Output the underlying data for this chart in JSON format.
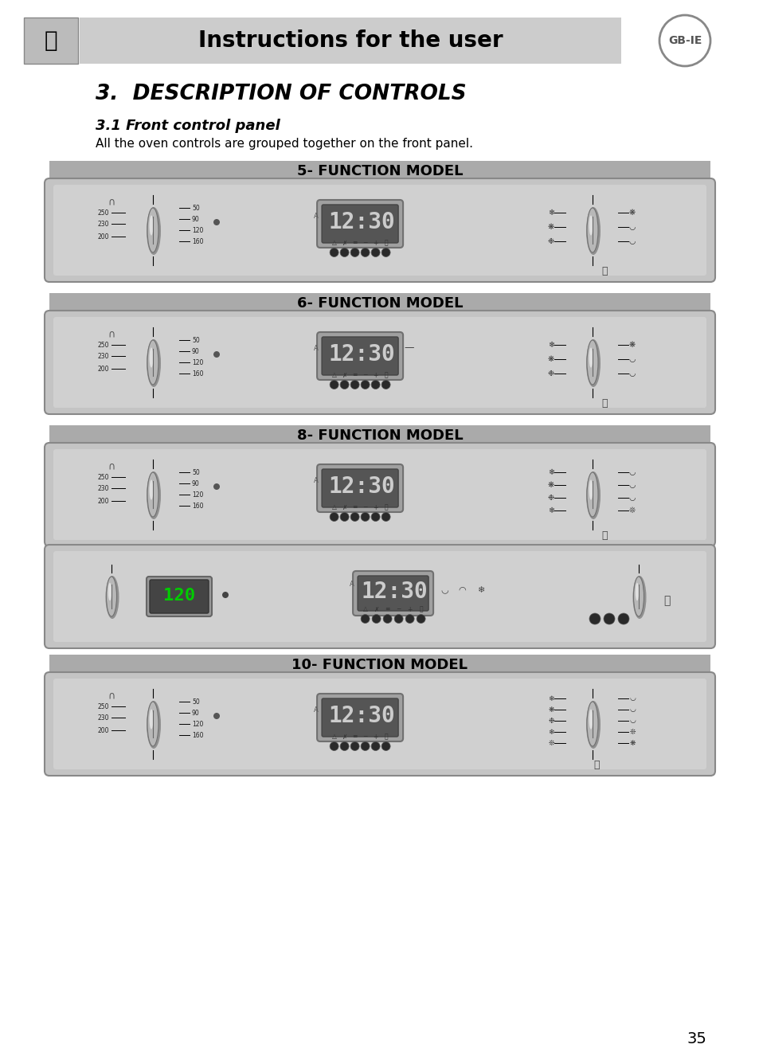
{
  "page_bg": "#ffffff",
  "header_bg": "#c8c8c8",
  "header_text": "Instructions for the user",
  "header_text_color": "#000000",
  "gbIE_text": "GB-IE",
  "section_title": "3.  DESCRIPTION OF CONTROLS",
  "subsection_title": "3.1 Front control panel",
  "subsection_body": "All the oven controls are grouped together on the front panel.",
  "panel_label_bg": "#aaaaaa",
  "panel_label_text_color": "#000000",
  "models": [
    "5- FUNCTION MODEL",
    "6- FUNCTION MODEL",
    "8- FUNCTION MODEL",
    "10- FUNCTION MODEL"
  ],
  "page_number": "35",
  "display_text": "12:30",
  "panel_border": "#888888",
  "panel_face": "#c0c0c0",
  "knob_color": "#909090"
}
